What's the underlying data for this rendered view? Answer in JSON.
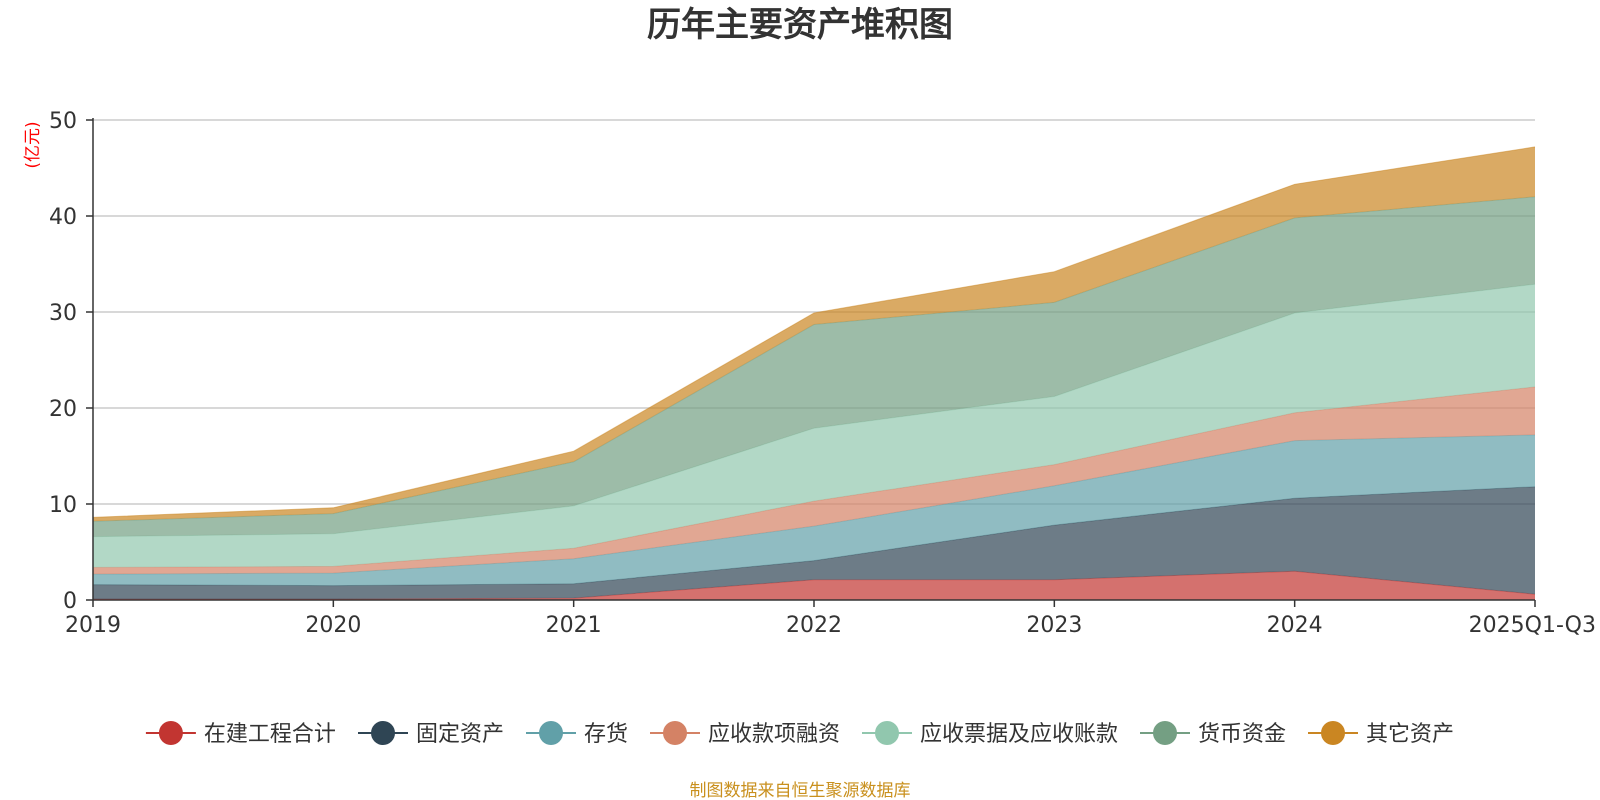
{
  "chart_data": {
    "type": "area",
    "stacked": true,
    "title": "历年主要资产堆积图",
    "ylabel": "(亿元)",
    "xlabel": "",
    "categories": [
      "2019",
      "2020",
      "2021",
      "2022",
      "2023",
      "2024",
      "2025Q1-Q3"
    ],
    "ylim": [
      0,
      50
    ],
    "yticks": [
      0,
      10,
      20,
      30,
      40,
      50
    ],
    "grid": true,
    "legend_position": "bottom",
    "series": [
      {
        "name": "在建工程合计",
        "color": "#c23531",
        "values": [
          0.1,
          0.1,
          0.2,
          2.1,
          2.1,
          3.0,
          0.6
        ]
      },
      {
        "name": "固定资产",
        "color": "#2f4554",
        "values": [
          1.5,
          1.4,
          1.5,
          2.0,
          5.7,
          7.6,
          11.2
        ]
      },
      {
        "name": "存货",
        "color": "#61a0a8",
        "values": [
          1.1,
          1.3,
          2.6,
          3.6,
          4.1,
          6.0,
          5.4
        ]
      },
      {
        "name": "应收款项融资",
        "color": "#d48265",
        "values": [
          0.7,
          0.7,
          1.1,
          2.6,
          2.2,
          2.9,
          5.0
        ]
      },
      {
        "name": "应收票据及应收账款",
        "color": "#91c7ae",
        "values": [
          3.2,
          3.4,
          4.4,
          7.6,
          7.1,
          10.4,
          10.7
        ]
      },
      {
        "name": "货币资金",
        "color": "#749f83",
        "values": [
          1.6,
          2.1,
          4.6,
          10.8,
          9.8,
          9.9,
          9.1
        ]
      },
      {
        "name": "其它资产",
        "color": "#ca8622",
        "values": [
          0.4,
          0.6,
          1.1,
          1.2,
          3.2,
          3.5,
          5.2
        ]
      }
    ]
  },
  "source_note": "制图数据来自恒生聚源数据库",
  "colors": {
    "unit_label": "#ff0000",
    "source_note": "#c9901e",
    "grid": "#cccccc",
    "axis": "#333333"
  }
}
